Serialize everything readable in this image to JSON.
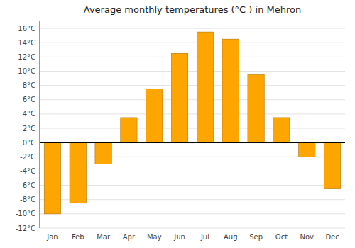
{
  "chart_data": {
    "type": "bar",
    "title": "Average monthly temperatures (°C ) in Mehron",
    "categories": [
      "Jan",
      "Feb",
      "Mar",
      "Apr",
      "May",
      "Jun",
      "Jul",
      "Aug",
      "Sep",
      "Oct",
      "Nov",
      "Dec"
    ],
    "values": [
      -10,
      -8.5,
      -3,
      3.5,
      7.5,
      12.5,
      15.5,
      14.5,
      9.5,
      3.5,
      -2,
      -6.5
    ],
    "color": "#FFA500",
    "ylim": [
      -12,
      17
    ],
    "yticks": [
      {
        "value": -12,
        "label": "-12°C"
      },
      {
        "value": -10,
        "label": "-10°C"
      },
      {
        "value": -8,
        "label": "-8°C"
      },
      {
        "value": -6,
        "label": "-6°C"
      },
      {
        "value": -4,
        "label": "-4°C"
      },
      {
        "value": -2,
        "label": "-2°C"
      },
      {
        "value": 0,
        "label": "0°C"
      },
      {
        "value": 2,
        "label": "2°C"
      },
      {
        "value": 4,
        "label": "4°C"
      },
      {
        "value": 6,
        "label": "6°C"
      },
      {
        "value": 8,
        "label": "8°C"
      },
      {
        "value": 10,
        "label": "10°C"
      },
      {
        "value": 12,
        "label": "12°C"
      },
      {
        "value": 14,
        "label": "14°C"
      },
      {
        "value": 16,
        "label": "16°C"
      }
    ],
    "grid": true
  }
}
